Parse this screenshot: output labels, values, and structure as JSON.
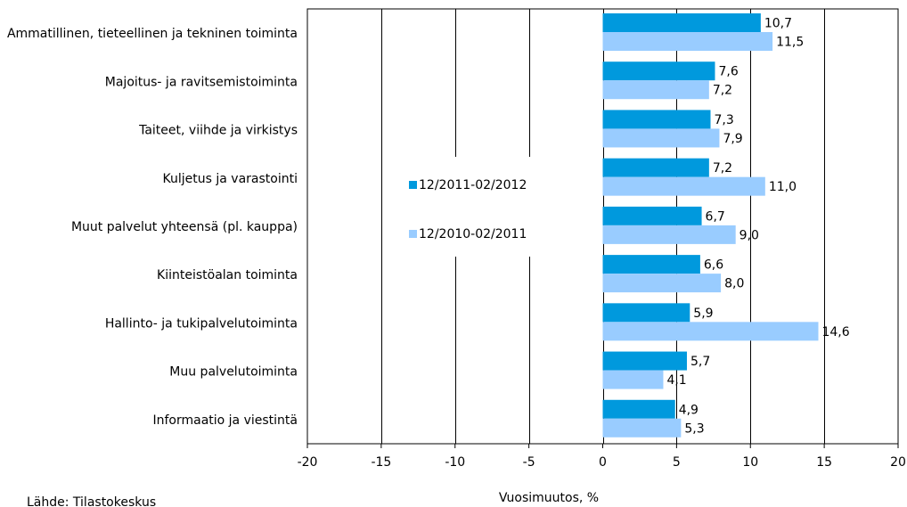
{
  "chart_data": {
    "type": "bar",
    "orientation": "horizontal",
    "categories": [
      "Ammatillinen, tieteellinen ja tekninen toiminta",
      "Majoitus- ja ravitsemistoiminta",
      "Taiteet, viihde ja virkistys",
      "Kuljetus ja varastointi",
      "Muut palvelut yhteensä (pl. kauppa)",
      "Kiinteistöalan toiminta",
      "Hallinto- ja tukipalvelutoiminta",
      "Muu palvelutoiminta",
      "Informaatio ja viestintä"
    ],
    "series": [
      {
        "name": "12/2011-02/2012",
        "color": "#0099dd",
        "values": [
          10.7,
          7.6,
          7.3,
          7.2,
          6.7,
          6.6,
          5.9,
          5.7,
          4.9
        ],
        "labels": [
          "10,7",
          "7,6",
          "7,3",
          "7,2",
          "6,7",
          "6,6",
          "5,9",
          "5,7",
          "4,9"
        ]
      },
      {
        "name": "12/2010-02/2011",
        "color": "#99ccff",
        "values": [
          11.5,
          7.2,
          7.9,
          11.0,
          9.0,
          8.0,
          14.6,
          4.1,
          5.3
        ],
        "labels": [
          "11,5",
          "7,2",
          "7,9",
          "11,0",
          "9,0",
          "8,0",
          "14,6",
          "4,1",
          "5,3"
        ]
      }
    ],
    "xlim": [
      -20,
      20
    ],
    "xticks": [
      -20,
      -15,
      -10,
      -5,
      0,
      5,
      10,
      15,
      20
    ],
    "xtick_labels": [
      "-20",
      "-15",
      "-10",
      "-5",
      "0",
      "5",
      "10",
      "15",
      "20"
    ],
    "xlabel": "Vuosimuutos, %",
    "ylabel": "",
    "title": "",
    "grid": "vertical",
    "legend": "center-left inside plot",
    "source": "Lähde: Tilastokeskus"
  }
}
